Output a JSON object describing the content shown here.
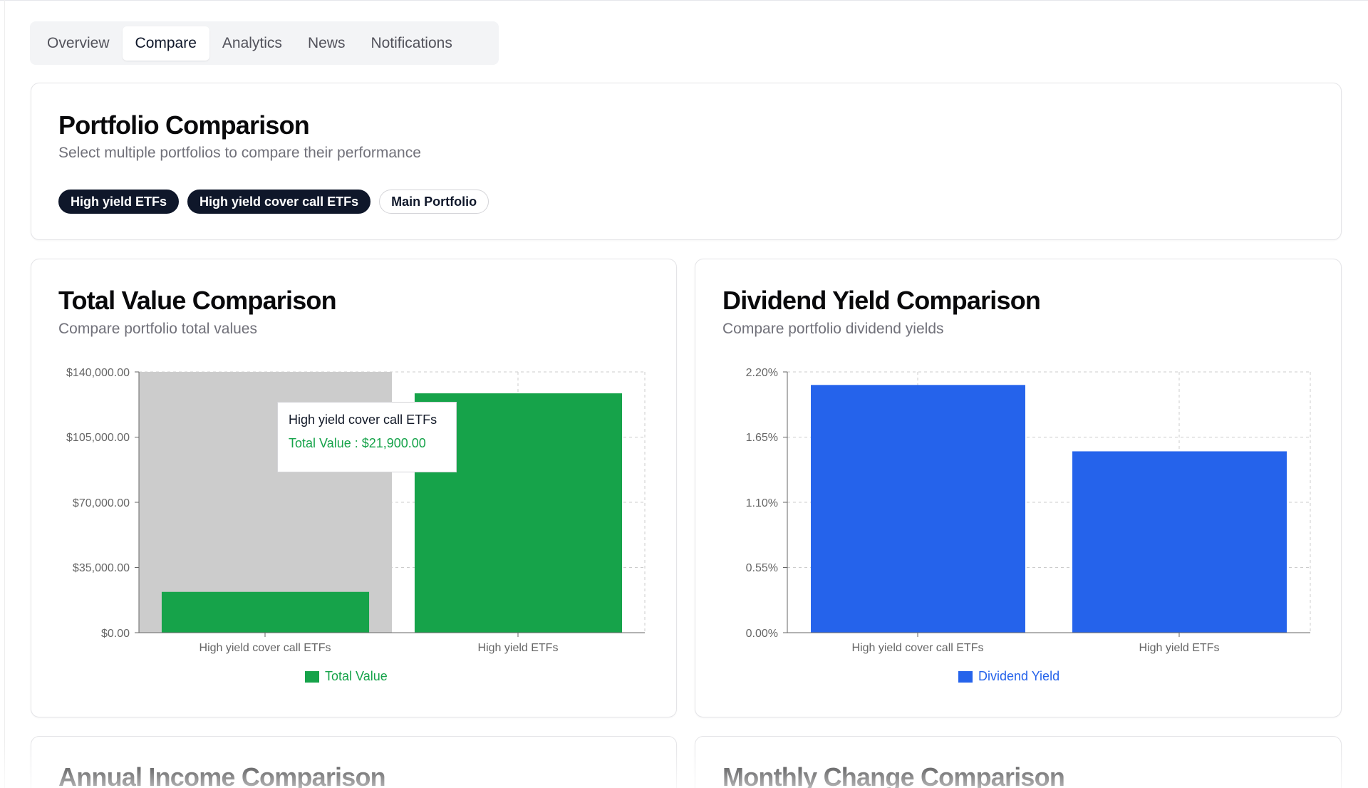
{
  "tabs": [
    {
      "label": "Overview",
      "active": false
    },
    {
      "label": "Compare",
      "active": true
    },
    {
      "label": "Analytics",
      "active": false
    },
    {
      "label": "News",
      "active": false
    },
    {
      "label": "Notifications",
      "active": false
    }
  ],
  "portfolio_card": {
    "title": "Portfolio Comparison",
    "subtitle": "Select multiple portfolios to compare their performance",
    "chips": [
      {
        "label": "High yield ETFs",
        "selected": true
      },
      {
        "label": "High yield cover call ETFs",
        "selected": true
      },
      {
        "label": "Main Portfolio",
        "selected": false
      }
    ]
  },
  "total_value_card": {
    "title": "Total Value Comparison",
    "subtitle": "Compare portfolio total values",
    "y_ticks": [
      "$140,000.00",
      "$105,000.00",
      "$70,000.00",
      "$35,000.00",
      "$0.00"
    ],
    "x_labels": [
      "High yield cover call ETFs",
      "High yield ETFs"
    ],
    "legend": "Total Value",
    "tooltip": {
      "title": "High yield cover call ETFs",
      "value": "Total Value : $21,900.00"
    }
  },
  "dividend_yield_card": {
    "title": "Dividend Yield Comparison",
    "subtitle": "Compare portfolio dividend yields",
    "y_ticks": [
      "2.20%",
      "1.65%",
      "1.10%",
      "0.55%",
      "0.00%"
    ],
    "x_labels": [
      "High yield cover call ETFs",
      "High yield ETFs"
    ],
    "legend": "Dividend Yield"
  },
  "annual_income_card": {
    "title": "Annual Income Comparison"
  },
  "monthly_change_card": {
    "title": "Monthly Change Comparison"
  },
  "colors": {
    "green": "#16a34a",
    "blue": "#2563eb",
    "hover": "#cccccc",
    "chip_dark": "#0f172a"
  },
  "chart_data": [
    {
      "type": "bar",
      "title": "Total Value Comparison",
      "categories": [
        "High yield cover call ETFs",
        "High yield ETFs"
      ],
      "series": [
        {
          "name": "Total Value",
          "values": [
            21900,
            128500
          ]
        }
      ],
      "ylim": [
        0,
        140000
      ],
      "grid": true,
      "legend": "bottom-center"
    },
    {
      "type": "bar",
      "title": "Dividend Yield Comparison",
      "categories": [
        "High yield cover call ETFs",
        "High yield ETFs"
      ],
      "series": [
        {
          "name": "Dividend Yield",
          "values": [
            2.09,
            1.53
          ]
        }
      ],
      "ylim": [
        0,
        2.2
      ],
      "grid": true,
      "legend": "bottom-center"
    }
  ]
}
